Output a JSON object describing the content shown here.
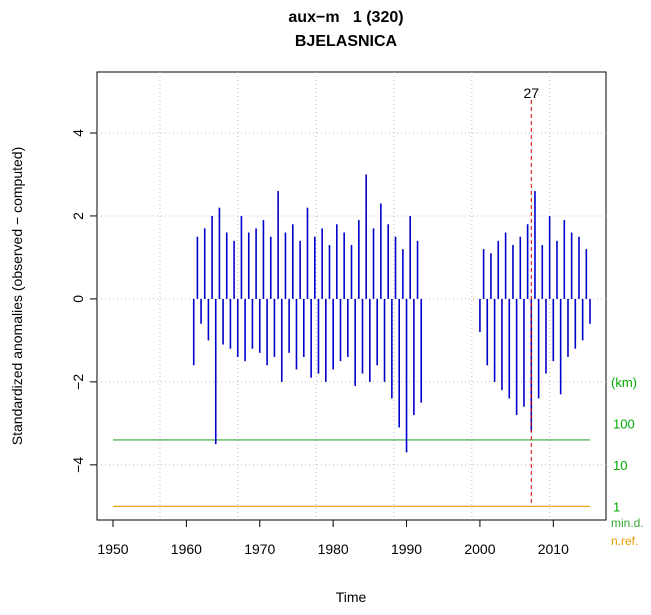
{
  "chart_data": {
    "type": "spike",
    "title": "aux−m   1 (320)",
    "subtitle": "BJELASNICA",
    "xlabel": "Time",
    "ylabel": "Standardized anomalies (observed − computed)",
    "xlim": [
      1947.82,
      2017.18
    ],
    "ylim": [
      -5.33,
      5.47
    ],
    "xticks": [
      1950,
      1960,
      1970,
      1980,
      1990,
      2000,
      2010
    ],
    "yticks": [
      {
        "value": -4,
        "label": "−4"
      },
      {
        "value": -2,
        "label": "−2"
      },
      0,
      2,
      4
    ],
    "xgrid": [
      1956.4,
      1967.0,
      1977.7,
      1988.3,
      1998.9,
      2009.5
    ],
    "grid": true,
    "color": "#0000cc",
    "x": [
      1961,
      1961.5,
      1962,
      1962.5,
      1963,
      1963.5,
      1964,
      1964.5,
      1965,
      1965.5,
      1966,
      1966.5,
      1967,
      1967.5,
      1968,
      1968.5,
      1969,
      1969.5,
      1970,
      1970.5,
      1971,
      1971.5,
      1972,
      1972.5,
      1973,
      1973.5,
      1974,
      1974.5,
      1975,
      1975.5,
      1976,
      1976.5,
      1977,
      1977.5,
      1978,
      1978.5,
      1979,
      1979.5,
      1980,
      1980.5,
      1981,
      1981.5,
      1982,
      1982.5,
      1983,
      1983.5,
      1984,
      1984.5,
      1985,
      1985.5,
      1986,
      1986.5,
      1987,
      1987.5,
      1988,
      1988.5,
      1989,
      1989.5,
      1990,
      1990.5,
      1991,
      1991.5,
      1992,
      2000,
      2000.5,
      2001,
      2001.5,
      2002,
      2002.5,
      2003,
      2003.5,
      2004,
      2004.5,
      2005,
      2005.5,
      2006,
      2006.5,
      2007,
      2007.5,
      2008,
      2008.5,
      2009,
      2009.5,
      2010,
      2010.5,
      2011,
      2011.5,
      2012,
      2012.5,
      2013,
      2013.5,
      2014,
      2014.5,
      2015
    ],
    "values": [
      -1.6,
      1.5,
      -0.6,
      1.7,
      -1.0,
      2.0,
      -3.5,
      2.2,
      -1.1,
      1.6,
      -1.2,
      1.4,
      -1.4,
      2.0,
      -1.5,
      1.6,
      -1.2,
      1.7,
      -1.3,
      1.9,
      -1.6,
      1.5,
      -1.4,
      2.6,
      -2.0,
      1.6,
      -1.3,
      1.8,
      -1.7,
      1.4,
      -1.4,
      2.2,
      -1.9,
      1.5,
      -1.8,
      1.7,
      -2.0,
      1.3,
      -1.7,
      1.8,
      -1.5,
      1.6,
      -1.4,
      1.3,
      -2.1,
      1.9,
      -1.8,
      3.0,
      -2.0,
      1.7,
      -1.6,
      2.3,
      -2.0,
      1.8,
      -2.4,
      1.5,
      -3.1,
      1.2,
      -3.7,
      2.0,
      -2.8,
      1.4,
      -2.5,
      -0.8,
      1.2,
      -1.6,
      1.1,
      -2.0,
      1.4,
      -2.2,
      1.6,
      -2.4,
      1.3,
      -2.8,
      1.5,
      -2.6,
      1.8,
      -3.2,
      2.6,
      -2.4,
      1.3,
      -1.8,
      2.0,
      -1.5,
      1.4,
      -2.3,
      1.9,
      -1.4,
      1.6,
      -1.2,
      1.5,
      -1.0,
      1.2,
      -0.6
    ],
    "marker": {
      "x": 2007,
      "label": "27",
      "color": "#dd0000"
    },
    "distance_title": "(km)",
    "distance_title_y": -2.0,
    "distance_ticks": [
      {
        "value": -3,
        "label": "100"
      },
      {
        "value": -4,
        "label": "10"
      },
      {
        "value": -5,
        "label": "1"
      }
    ],
    "distance_color": "#00aa00",
    "reference_lines": [
      {
        "name": "min.d.",
        "value": -3.4,
        "color": "#33aa33"
      },
      {
        "name": "n.ref.",
        "value": -5.0,
        "color": "#ee9900"
      }
    ]
  }
}
